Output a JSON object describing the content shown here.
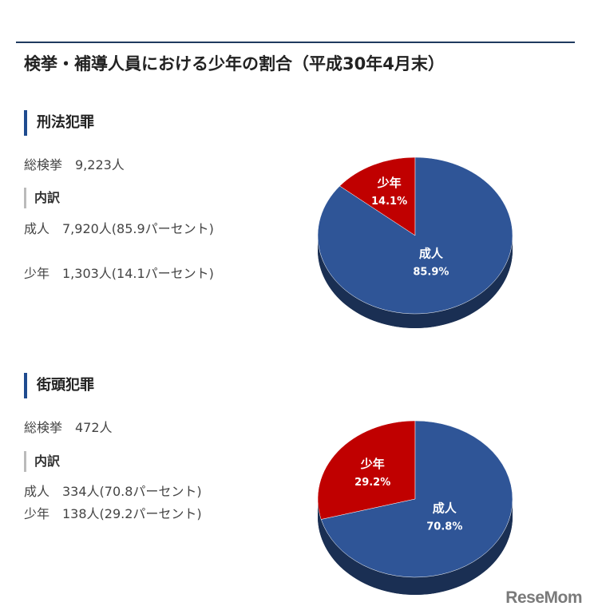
{
  "title": "検挙・補導人員における少年の割合（平成30年4月末）",
  "sections": [
    {
      "heading": "刑法犯罪",
      "total": "総検挙　9,223人",
      "breakdown_heading": "内訳",
      "lines": [
        "成人　7,920人(85.9パーセント)",
        "少年　1,303人(14.1パーセント)"
      ]
    },
    {
      "heading": "街頭犯罪",
      "total": "総検挙　472人",
      "breakdown_heading": "内訳",
      "lines": [
        "成人　334人(70.8パーセント)",
        "少年　138人(29.2パーセント)"
      ]
    }
  ],
  "chart_data": [
    {
      "type": "pie",
      "title": "刑法犯罪",
      "categories": [
        "少年",
        "成人"
      ],
      "values": [
        14.1,
        85.9
      ],
      "value_labels": [
        "14.1%",
        "85.9%"
      ],
      "colors": [
        "#c00000",
        "#2f5597"
      ]
    },
    {
      "type": "pie",
      "title": "街頭犯罪",
      "categories": [
        "少年",
        "成人"
      ],
      "values": [
        29.2,
        70.8
      ],
      "value_labels": [
        "29.2%",
        "70.8%"
      ],
      "colors": [
        "#c00000",
        "#2f5597"
      ]
    }
  ],
  "brand": "ReseMom"
}
